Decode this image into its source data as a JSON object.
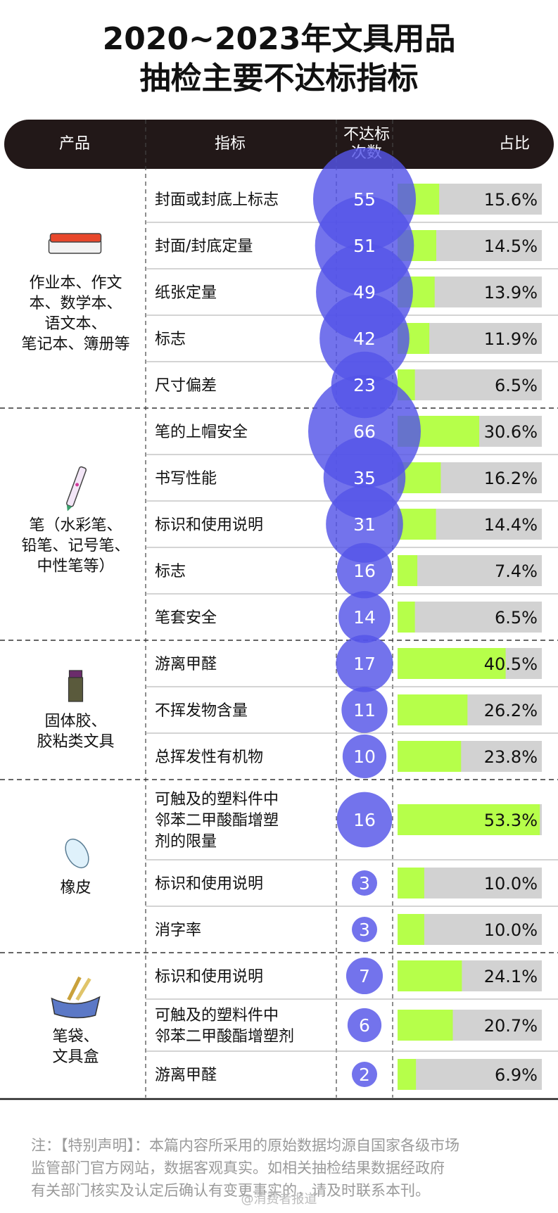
{
  "title_lines": [
    "2020~2023年文具用品",
    "抽检主要不达标指标"
  ],
  "headers": {
    "product": "产品",
    "indicator": "指标",
    "count": [
      "不达标",
      "次数"
    ],
    "share": "占比"
  },
  "colors": {
    "bubble": "#5454e8",
    "bar_fill": "#b6ff4a",
    "bar_track": "#d2d2d2",
    "header_bg": "#221818"
  },
  "chart_data": {
    "type": "table",
    "groups": [
      {
        "product": "作业本、作文本、数学本、语文本、笔记本、簿册等",
        "product_lines": [
          "作业本、作文",
          "本、数学本、",
          "语文本、",
          "笔记本、簿册等"
        ],
        "icon": "notebook-icon",
        "rows": [
          {
            "indicator": [
              "封面或封底上标志"
            ],
            "count": 55,
            "share": 15.6,
            "share_label": "15.6%"
          },
          {
            "indicator": [
              "封面/封底定量"
            ],
            "count": 51,
            "share": 14.5,
            "share_label": "14.5%"
          },
          {
            "indicator": [
              "纸张定量"
            ],
            "count": 49,
            "share": 13.9,
            "share_label": "13.9%"
          },
          {
            "indicator": [
              "标志"
            ],
            "count": 42,
            "share": 11.9,
            "share_label": "11.9%"
          },
          {
            "indicator": [
              "尺寸偏差"
            ],
            "count": 23,
            "share": 6.5,
            "share_label": "6.5%"
          }
        ]
      },
      {
        "product": "笔（水彩笔、铅笔、记号笔、中性笔等）",
        "product_lines": [
          "笔（水彩笔、",
          "铅笔、记号笔、",
          "中性笔等）"
        ],
        "icon": "pen-icon",
        "rows": [
          {
            "indicator": [
              "笔的上帽安全"
            ],
            "count": 66,
            "share": 30.6,
            "share_label": "30.6%"
          },
          {
            "indicator": [
              "书写性能"
            ],
            "count": 35,
            "share": 16.2,
            "share_label": "16.2%"
          },
          {
            "indicator": [
              "标识和使用说明"
            ],
            "count": 31,
            "share": 14.4,
            "share_label": "14.4%"
          },
          {
            "indicator": [
              "标志"
            ],
            "count": 16,
            "share": 7.4,
            "share_label": "7.4%"
          },
          {
            "indicator": [
              "笔套安全"
            ],
            "count": 14,
            "share": 6.5,
            "share_label": "6.5%"
          }
        ]
      },
      {
        "product": "固体胶、胶粘类文具",
        "product_lines": [
          "固体胶、",
          "胶粘类文具"
        ],
        "icon": "glue-stick-icon",
        "rows": [
          {
            "indicator": [
              "游离甲醛"
            ],
            "count": 17,
            "share": 40.5,
            "share_label": "40.5%"
          },
          {
            "indicator": [
              "不挥发物含量"
            ],
            "count": 11,
            "share": 26.2,
            "share_label": "26.2%"
          },
          {
            "indicator": [
              "总挥发性有机物"
            ],
            "count": 10,
            "share": 23.8,
            "share_label": "23.8%"
          }
        ]
      },
      {
        "product": "橡皮",
        "product_lines": [
          "橡皮"
        ],
        "icon": "eraser-icon",
        "rows": [
          {
            "indicator": [
              "可触及的塑料件中",
              "邻苯二甲酸酯增塑",
              "剂的限量"
            ],
            "count": 16,
            "share": 53.3,
            "share_label": "53.3%"
          },
          {
            "indicator": [
              "标识和使用说明"
            ],
            "count": 3,
            "share": 10.0,
            "share_label": "10.0%"
          },
          {
            "indicator": [
              "消字率"
            ],
            "count": 3,
            "share": 10.0,
            "share_label": "10.0%"
          }
        ]
      },
      {
        "product": "笔袋、文具盒",
        "product_lines": [
          "笔袋、",
          "文具盒"
        ],
        "icon": "pencil-case-icon",
        "rows": [
          {
            "indicator": [
              "标识和使用说明"
            ],
            "count": 7,
            "share": 24.1,
            "share_label": "24.1%"
          },
          {
            "indicator": [
              "可触及的塑料件中",
              "邻苯二甲酸酯增塑剂"
            ],
            "count": 6,
            "share": 20.7,
            "share_label": "20.7%"
          },
          {
            "indicator": [
              "游离甲醛"
            ],
            "count": 2,
            "share": 6.9,
            "share_label": "6.9%"
          }
        ]
      }
    ]
  },
  "note_lines": [
    "注：【特别声明】：本篇内容所采用的原始数据均源自国家各级市场",
    "监管部门官方网站，数据客观真实。如相关抽检结果数据经政府",
    "有关部门核实及认定后确认有变更事实的，请及时联系本刊。"
  ],
  "watermark": "@消费者报道"
}
